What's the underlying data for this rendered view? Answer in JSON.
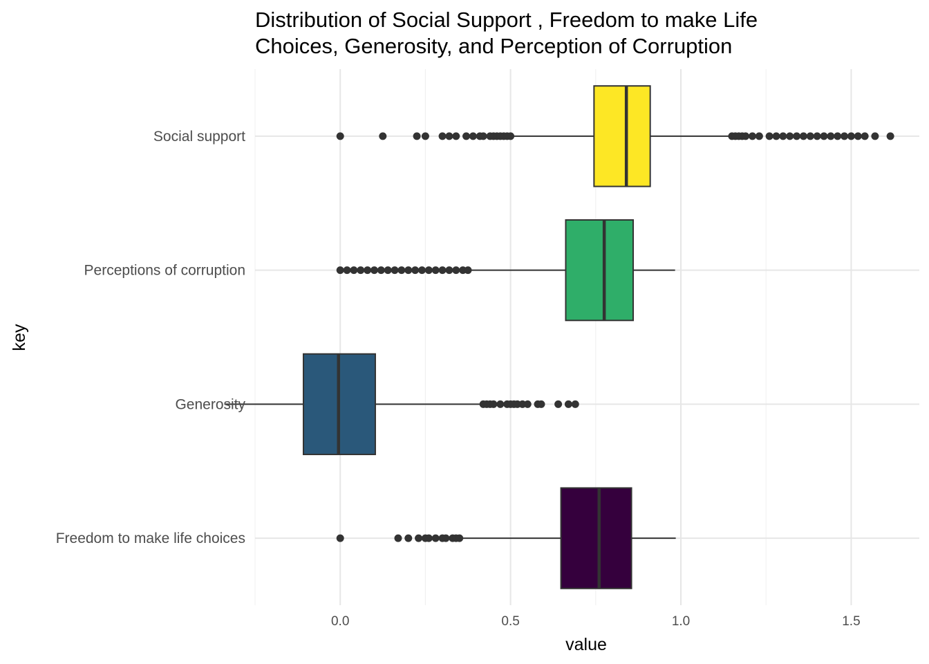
{
  "chart_data": {
    "type": "boxplot",
    "orientation": "horizontal",
    "title_lines": [
      "Distribution of Social Support , Freedom to make Life",
      "Choices, Generosity, and Perception of Corruption"
    ],
    "xlabel": "value",
    "ylabel": "key",
    "xlim": [
      -0.25,
      1.7
    ],
    "x_ticks": [
      0.0,
      0.5,
      1.0,
      1.5
    ],
    "x_tick_labels": [
      "0.0",
      "0.5",
      "1.0",
      "1.5"
    ],
    "grid": true,
    "legend": "none",
    "series": [
      {
        "name": "Social support",
        "color": "#fde725",
        "q1": 0.745,
        "median": 0.84,
        "q3": 0.91,
        "whisker_low": 0.51,
        "whisker_high": 1.14,
        "outliers": [
          0.0,
          0.125,
          0.225,
          0.25,
          0.3,
          0.32,
          0.34,
          0.37,
          0.39,
          0.41,
          0.42,
          0.44,
          0.45,
          0.46,
          0.47,
          0.48,
          0.49,
          0.5,
          1.15,
          1.16,
          1.17,
          1.18,
          1.19,
          1.21,
          1.23,
          1.26,
          1.28,
          1.3,
          1.32,
          1.34,
          1.36,
          1.38,
          1.4,
          1.42,
          1.44,
          1.46,
          1.48,
          1.5,
          1.52,
          1.54,
          1.57,
          1.615
        ]
      },
      {
        "name": "Perceptions of corruption",
        "color": "#2fae69",
        "q1": 0.662,
        "median": 0.775,
        "q3": 0.86,
        "whisker_low": 0.375,
        "whisker_high": 0.983,
        "outliers": [
          0.0,
          0.02,
          0.04,
          0.06,
          0.08,
          0.1,
          0.12,
          0.14,
          0.16,
          0.18,
          0.2,
          0.22,
          0.24,
          0.26,
          0.28,
          0.3,
          0.32,
          0.34,
          0.36,
          0.375
        ]
      },
      {
        "name": "Generosity",
        "color": "#2a587a",
        "q1": -0.108,
        "median": -0.005,
        "q3": 0.103,
        "whisker_low": -0.34,
        "whisker_high": 0.42,
        "outliers": [
          0.42,
          0.43,
          0.44,
          0.45,
          0.47,
          0.49,
          0.5,
          0.51,
          0.52,
          0.535,
          0.55,
          0.58,
          0.59,
          0.64,
          0.67,
          0.69
        ]
      },
      {
        "name": "Freedom to make life choices",
        "color": "#35003d",
        "q1": 0.648,
        "median": 0.76,
        "q3": 0.855,
        "whisker_low": 0.36,
        "whisker_high": 0.985,
        "outliers": [
          0.0,
          0.17,
          0.2,
          0.23,
          0.25,
          0.26,
          0.28,
          0.3,
          0.31,
          0.33,
          0.34,
          0.35
        ]
      }
    ]
  }
}
